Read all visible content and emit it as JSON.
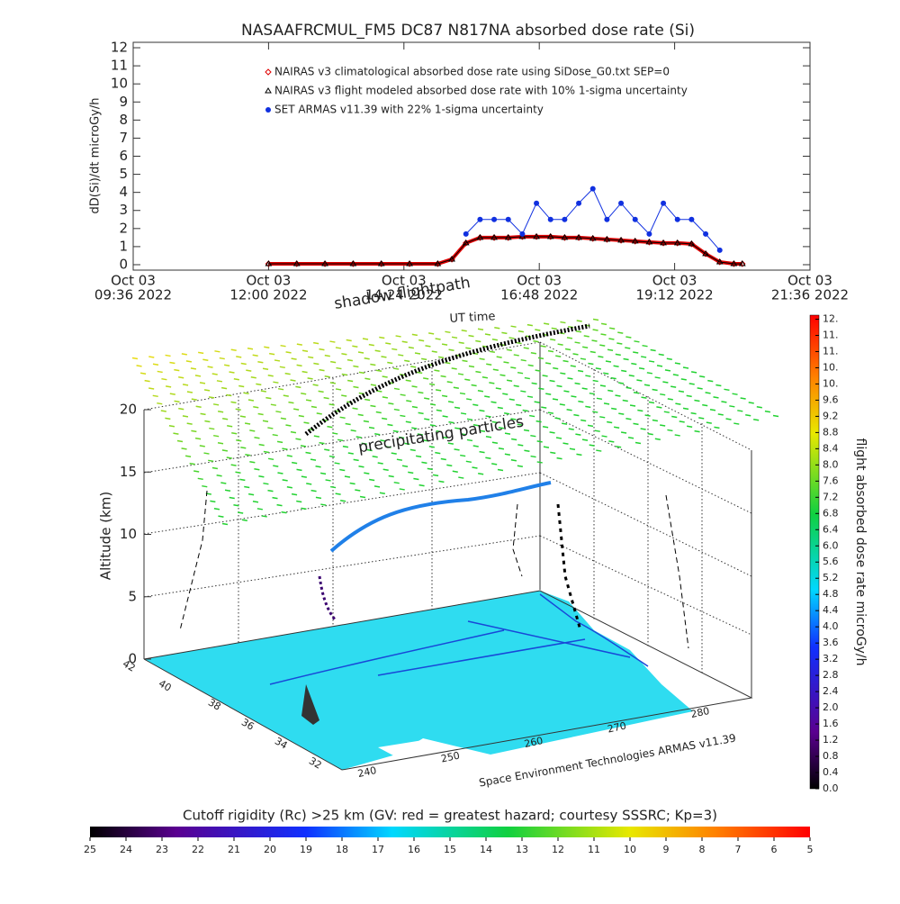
{
  "chart_data": [
    {
      "type": "line",
      "title": "NASAAFRCMUL_FM5 DC87 N817NA absorbed dose rate (Si)",
      "ylabel": "dD(Si)/dt microGy/h",
      "xlim": [
        "2022-10-03T09:36",
        "2022-10-03T21:36"
      ],
      "xticks": [
        {
          "value": "2022-10-03T09:36",
          "label": [
            "Oct 03",
            "09:36 2022"
          ]
        },
        {
          "value": "2022-10-03T12:00",
          "label": [
            "Oct 03",
            "12:00 2022"
          ]
        },
        {
          "value": "2022-10-03T14:24",
          "label": [
            "Oct 03",
            "14:24 2022"
          ]
        },
        {
          "value": "2022-10-03T16:48",
          "label": [
            "Oct 03",
            "16:48 2022"
          ]
        },
        {
          "value": "2022-10-03T19:12",
          "label": [
            "Oct 03",
            "19:12 2022"
          ]
        },
        {
          "value": "2022-10-03T21:36",
          "label": [
            "Oct 03",
            "21:36 2022"
          ]
        }
      ],
      "ylim": [
        -0.3,
        12.3
      ],
      "yticks": [
        0,
        1,
        2,
        3,
        4,
        5,
        6,
        7,
        8,
        9,
        10,
        11,
        12
      ],
      "x": [
        "2022-10-03T12:00",
        "2022-10-03T12:30",
        "2022-10-03T13:00",
        "2022-10-03T13:30",
        "2022-10-03T14:00",
        "2022-10-03T14:30",
        "2022-10-03T15:00",
        "2022-10-03T15:15",
        "2022-10-03T15:30",
        "2022-10-03T15:45",
        "2022-10-03T16:00",
        "2022-10-03T16:15",
        "2022-10-03T16:30",
        "2022-10-03T16:45",
        "2022-10-03T17:00",
        "2022-10-03T17:15",
        "2022-10-03T17:30",
        "2022-10-03T17:45",
        "2022-10-03T18:00",
        "2022-10-03T18:15",
        "2022-10-03T18:30",
        "2022-10-03T18:45",
        "2022-10-03T19:00",
        "2022-10-03T19:15",
        "2022-10-03T19:30",
        "2022-10-03T19:45",
        "2022-10-03T20:00",
        "2022-10-03T20:15",
        "2022-10-03T20:24"
      ],
      "series": [
        {
          "name": "NAIRAS v3 climatological absorbed dose rate using SiDose_G0.txt SEP=0",
          "color": "#e00000",
          "marker": "diamond",
          "values": [
            0.05,
            0.05,
            0.05,
            0.05,
            0.05,
            0.05,
            0.05,
            0.3,
            1.2,
            1.5,
            1.5,
            1.5,
            1.55,
            1.55,
            1.55,
            1.5,
            1.5,
            1.45,
            1.4,
            1.35,
            1.3,
            1.25,
            1.2,
            1.2,
            1.15,
            0.6,
            0.15,
            0.05,
            0.05
          ]
        },
        {
          "name": "NAIRAS v3 flight modeled absorbed dose rate with 10% 1-sigma uncertainty",
          "color": "#000000",
          "marker": "triangle",
          "values": [
            0.05,
            0.05,
            0.05,
            0.05,
            0.05,
            0.05,
            0.05,
            0.3,
            1.2,
            1.5,
            1.5,
            1.5,
            1.55,
            1.55,
            1.55,
            1.5,
            1.5,
            1.45,
            1.4,
            1.35,
            1.3,
            1.25,
            1.2,
            1.2,
            1.15,
            0.6,
            0.15,
            0.05,
            0.05
          ]
        },
        {
          "name": "SET ARMAS v11.39 with 22% 1-sigma uncertainty",
          "color": "#1030e0",
          "marker": "circle",
          "values": [
            null,
            null,
            null,
            null,
            null,
            null,
            null,
            null,
            1.7,
            2.5,
            2.5,
            2.5,
            1.7,
            3.4,
            2.5,
            2.5,
            3.4,
            4.2,
            2.5,
            3.4,
            2.5,
            1.7,
            3.4,
            2.5,
            2.5,
            1.7,
            0.8,
            null,
            null
          ]
        }
      ]
    },
    {
      "type": "3d",
      "zlabel": "Altitude (km)",
      "zticks": [
        0,
        5,
        10,
        15,
        20
      ],
      "latticks": [
        42,
        40,
        38,
        36,
        34,
        32
      ],
      "lonticks": [
        240,
        250,
        260,
        270,
        280
      ],
      "annotations": [
        "shadow flightpath",
        "UT time",
        "precipitating particles"
      ],
      "caption": "Space Environment Technologies ARMAS v11.39"
    },
    {
      "type": "colorbar",
      "label": "flight absorbed dose rate microGy/h",
      "clim": [
        0,
        11.7
      ],
      "ticks": [
        {
          "value": 0,
          "label": "0.0"
        },
        0.4,
        0.8,
        1.2,
        1.6,
        {
          "value": 2,
          "label": "2.0"
        },
        2.4,
        2.8,
        3.2,
        3.6,
        {
          "value": 4,
          "label": "4.0"
        },
        4.4,
        4.8,
        5.2,
        5.6,
        {
          "value": 6,
          "label": "6.0"
        },
        6.4,
        6.8,
        7.2,
        7.6,
        {
          "value": 8,
          "label": "8.0"
        },
        8.4,
        8.8,
        9.2,
        9.6,
        {
          "value": 10,
          "label": "10."
        },
        {
          "value": 10.4,
          "label": "10."
        },
        {
          "value": 10.8,
          "label": "11."
        },
        {
          "value": 11.2,
          "label": "11."
        },
        {
          "value": 11.6,
          "label": "12."
        }
      ]
    },
    {
      "type": "colorbar",
      "label": "Cutoff rigidity (Rc) >25 km (GV: red = greatest hazard; courtesy SSSRC; Kp=3)",
      "clim": [
        25,
        5
      ],
      "ticks": [
        25,
        24,
        23,
        22,
        21,
        20,
        19,
        18,
        17,
        16,
        15,
        14,
        13,
        12,
        11,
        10,
        9,
        8,
        7,
        6,
        5
      ]
    }
  ]
}
